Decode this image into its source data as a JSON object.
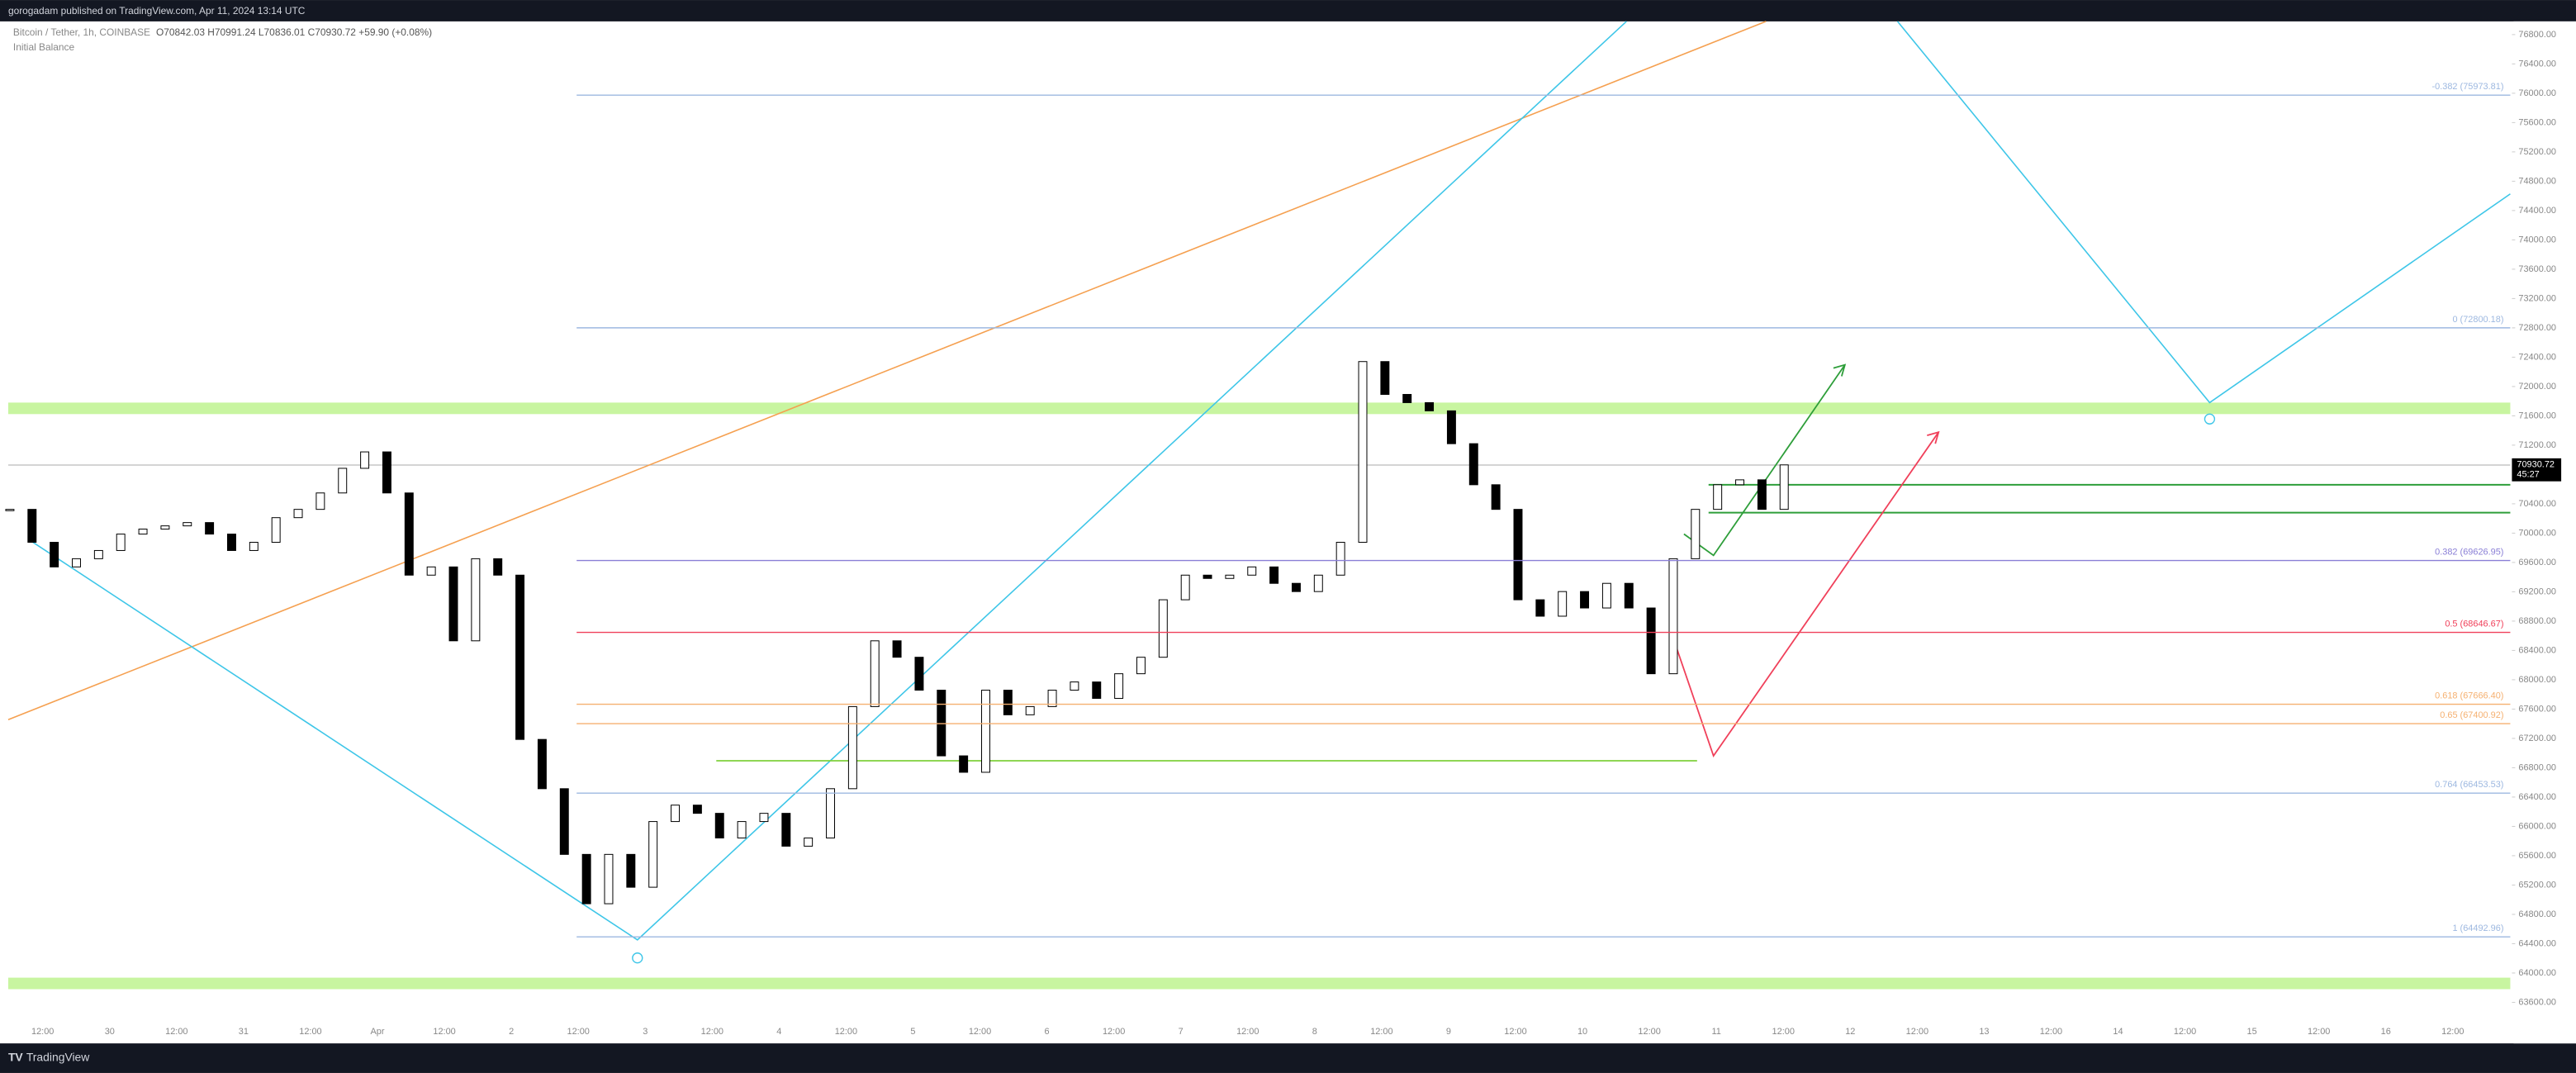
{
  "chart_data": {
    "type": "candlestick",
    "header": "gorogadam published on TradingView.com, Apr 11, 2024 13:14 UTC",
    "title": "Bitcoin / Tether, 1h, COINBASE",
    "ohlc": "O70842.03 H70991.24 L70836.01 C70930.72 +59.90 (+0.08%)",
    "indicator": "Initial Balance",
    "footer": "TradingView",
    "last_price": {
      "value": 70930.72,
      "label": "70930.72"
    },
    "countdown": "45:27",
    "up_color": "#ffffff",
    "down_color": "#000000",
    "values": [
      70324,
      69875,
      69539,
      69651,
      69763,
      69987,
      70055,
      70099,
      70144,
      69987,
      69763,
      69875,
      70211,
      70324,
      70548,
      70884,
      71108,
      70548,
      69427,
      69539,
      68531,
      69651,
      69427,
      67186,
      66514,
      65618,
      64945,
      65618,
      65170,
      66066,
      66290,
      66178,
      65842,
      66066,
      66178,
      65730,
      65842,
      66514,
      67634,
      68531,
      68307,
      67858,
      66962,
      66738,
      67858,
      67522,
      67634,
      67858,
      67970,
      67746,
      68082,
      68307,
      69091,
      69427,
      69382,
      69427,
      69539,
      69315,
      69203,
      69427,
      69875,
      72340,
      71892,
      71780,
      71668,
      71220,
      70660,
      70324,
      69091,
      68867,
      69203,
      68979,
      69315,
      68979,
      68082,
      69651,
      70324,
      70660,
      70727,
      70324,
      70930.72
    ],
    "time_labels": [
      "12:00",
      "30",
      "12:00",
      "31",
      "12:00",
      "Apr",
      "12:00",
      "2",
      "12:00",
      "3",
      "12:00",
      "4",
      "12:00",
      "5",
      "12:00",
      "6",
      "12:00",
      "7",
      "12:00",
      "8",
      "12:00",
      "9",
      "12:00",
      "10",
      "12:00",
      "11",
      "12:00",
      "12",
      "12:00",
      "13",
      "12:00",
      "14",
      "12:00",
      "15",
      "12:00",
      "16",
      "12:00"
    ],
    "ylim": [
      63040,
      76980
    ],
    "yticks": [
      {
        "value": 76800,
        "label": "76800.00"
      },
      {
        "value": 76400,
        "label": "76400.00"
      },
      {
        "value": 76000,
        "label": "76000.00"
      },
      {
        "value": 75600,
        "label": "75600.00"
      },
      {
        "value": 75200,
        "label": "75200.00"
      },
      {
        "value": 74800,
        "label": "74800.00"
      },
      {
        "value": 74400,
        "label": "74400.00"
      },
      {
        "value": 74000,
        "label": "74000.00"
      },
      {
        "value": 73600,
        "label": "73600.00"
      },
      {
        "value": 73200,
        "label": "73200.00"
      },
      {
        "value": 72800,
        "label": "72800.00"
      },
      {
        "value": 72400,
        "label": "72400.00"
      },
      {
        "value": 72000,
        "label": "72000.00"
      },
      {
        "value": 71600,
        "label": "71600.00"
      },
      {
        "value": 71200,
        "label": "71200.00"
      },
      {
        "value": 70800,
        "label": "70800.00"
      },
      {
        "value": 70400,
        "label": "70400.00"
      },
      {
        "value": 70000,
        "label": "70000.00"
      },
      {
        "value": 69600,
        "label": "69600.00"
      },
      {
        "value": 69200,
        "label": "69200.00"
      },
      {
        "value": 68800,
        "label": "68800.00"
      },
      {
        "value": 68400,
        "label": "68400.00"
      },
      {
        "value": 68000,
        "label": "68000.00"
      },
      {
        "value": 67600,
        "label": "67600.00"
      },
      {
        "value": 67200,
        "label": "67200.00"
      },
      {
        "value": 66800,
        "label": "66800.00"
      },
      {
        "value": 66400,
        "label": "66400.00"
      },
      {
        "value": 66000,
        "label": "66000.00"
      },
      {
        "value": 65600,
        "label": "65600.00"
      },
      {
        "value": 65200,
        "label": "65200.00"
      },
      {
        "value": 64800,
        "label": "64800.00"
      },
      {
        "value": 64400,
        "label": "64400.00"
      },
      {
        "value": 64000,
        "label": "64000.00"
      },
      {
        "value": 63600,
        "label": "63600.00"
      }
    ],
    "fib_levels": [
      {
        "label": "-0.382 (75973.81)",
        "value": 75973.81,
        "color": "#9db8e0"
      },
      {
        "label": "0 (72800.18)",
        "value": 72800.18,
        "color": "#9db8e0"
      },
      {
        "label": "0.382 (69626.95)",
        "value": 69626.95,
        "color": "#8a7fd6"
      },
      {
        "label": "0.5 (68646.67)",
        "value": 68646.67,
        "color": "#f0405a"
      },
      {
        "label": "0.618 (67666.40)",
        "value": 67666.4,
        "color": "#f5b070"
      },
      {
        "label": "0.65 (67400.92)",
        "value": 67400.92,
        "color": "#f5b070"
      },
      {
        "label": "0.764 (66453.53)",
        "value": 66453.53,
        "color": "#9db8e0"
      },
      {
        "label": "1 (64492.96)",
        "value": 64492.96,
        "color": "#9db8e0"
      }
    ]
  }
}
